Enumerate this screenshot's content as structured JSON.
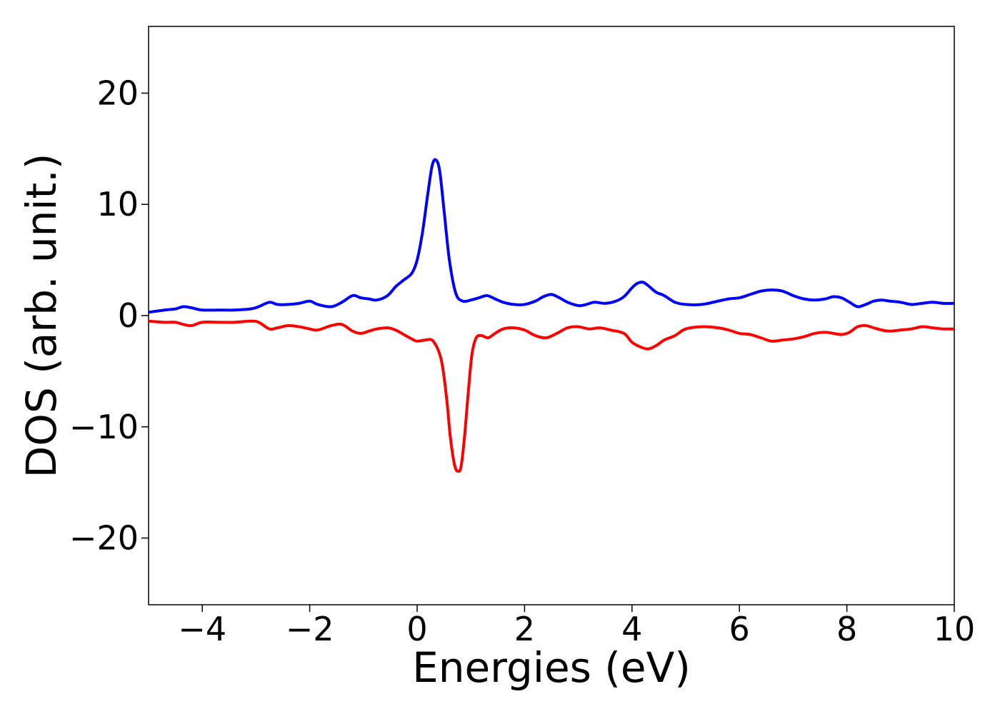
{
  "chart_data": {
    "type": "line",
    "xlabel": "Energies (eV)",
    "ylabel": "DOS (arb. unit.)",
    "xlim": [
      -5,
      10
    ],
    "ylim": [
      -26,
      26
    ],
    "xticks": [
      -4,
      -2,
      0,
      2,
      4,
      6,
      8,
      10
    ],
    "xtick_labels": [
      "−4",
      "−2",
      "0",
      "2",
      "4",
      "6",
      "8",
      "10"
    ],
    "yticks": [
      -20,
      -10,
      0,
      10,
      20
    ],
    "ytick_labels": [
      "−20",
      "−10",
      "0",
      "10",
      "20"
    ],
    "grid": false,
    "legend": "none",
    "series": [
      {
        "color": "#0000ff",
        "x": [
          -5.0,
          -4.7,
          -4.5,
          -4.35,
          -4.2,
          -4.0,
          -3.7,
          -3.4,
          -3.1,
          -2.95,
          -2.75,
          -2.6,
          -2.4,
          -2.2,
          -2.0,
          -1.85,
          -1.6,
          -1.4,
          -1.2,
          -1.05,
          -0.9,
          -0.75,
          -0.55,
          -0.4,
          -0.25,
          -0.1,
          0.0,
          0.1,
          0.2,
          0.28,
          0.35,
          0.42,
          0.5,
          0.6,
          0.72,
          0.85,
          1.0,
          1.15,
          1.3,
          1.45,
          1.6,
          1.8,
          2.0,
          2.2,
          2.35,
          2.5,
          2.65,
          2.8,
          3.0,
          3.15,
          3.3,
          3.5,
          3.7,
          3.85,
          4.0,
          4.1,
          4.2,
          4.3,
          4.45,
          4.6,
          4.8,
          5.0,
          5.3,
          5.6,
          5.8,
          6.0,
          6.2,
          6.4,
          6.6,
          6.8,
          7.0,
          7.2,
          7.4,
          7.6,
          7.75,
          7.9,
          8.05,
          8.2,
          8.35,
          8.5,
          8.65,
          8.8,
          9.0,
          9.2,
          9.4,
          9.6,
          9.8,
          10.0
        ],
        "y": [
          0.3,
          0.5,
          0.6,
          0.8,
          0.7,
          0.5,
          0.5,
          0.5,
          0.6,
          0.8,
          1.2,
          1.0,
          1.0,
          1.1,
          1.3,
          1.0,
          0.8,
          1.2,
          1.8,
          1.6,
          1.5,
          1.4,
          1.8,
          2.6,
          3.2,
          3.8,
          5.0,
          7.5,
          11.0,
          13.5,
          14.0,
          13.0,
          9.5,
          5.0,
          2.0,
          1.3,
          1.4,
          1.6,
          1.8,
          1.5,
          1.2,
          1.0,
          1.0,
          1.3,
          1.7,
          1.9,
          1.6,
          1.2,
          0.9,
          1.0,
          1.2,
          1.1,
          1.3,
          1.7,
          2.5,
          2.9,
          3.0,
          2.7,
          2.1,
          1.8,
          1.2,
          1.0,
          1.0,
          1.3,
          1.5,
          1.6,
          1.9,
          2.2,
          2.3,
          2.2,
          1.8,
          1.5,
          1.4,
          1.5,
          1.7,
          1.6,
          1.2,
          0.8,
          1.0,
          1.3,
          1.4,
          1.3,
          1.2,
          1.0,
          1.1,
          1.2,
          1.1,
          1.1
        ]
      },
      {
        "color": "#ff0000",
        "x": [
          -5.0,
          -4.7,
          -4.5,
          -4.35,
          -4.2,
          -4.0,
          -3.7,
          -3.4,
          -3.1,
          -2.95,
          -2.75,
          -2.6,
          -2.4,
          -2.2,
          -2.0,
          -1.85,
          -1.6,
          -1.4,
          -1.2,
          -1.05,
          -0.9,
          -0.75,
          -0.55,
          -0.4,
          -0.25,
          -0.1,
          0.0,
          0.15,
          0.3,
          0.45,
          0.55,
          0.62,
          0.7,
          0.77,
          0.82,
          0.88,
          0.95,
          1.02,
          1.1,
          1.2,
          1.32,
          1.45,
          1.6,
          1.8,
          2.0,
          2.2,
          2.4,
          2.6,
          2.8,
          3.0,
          3.2,
          3.4,
          3.6,
          3.85,
          4.0,
          4.15,
          4.3,
          4.45,
          4.6,
          4.8,
          5.0,
          5.3,
          5.6,
          5.8,
          6.0,
          6.2,
          6.4,
          6.6,
          6.8,
          7.0,
          7.2,
          7.4,
          7.6,
          7.75,
          7.9,
          8.05,
          8.2,
          8.35,
          8.5,
          8.65,
          8.8,
          9.0,
          9.2,
          9.4,
          9.6,
          9.8,
          10.0
        ],
        "y": [
          -0.5,
          -0.6,
          -0.6,
          -0.8,
          -0.9,
          -0.6,
          -0.6,
          -0.6,
          -0.5,
          -0.6,
          -1.2,
          -1.1,
          -0.9,
          -1.0,
          -1.2,
          -1.3,
          -0.9,
          -0.8,
          -1.4,
          -1.6,
          -1.4,
          -1.2,
          -1.1,
          -1.3,
          -1.7,
          -2.1,
          -2.3,
          -2.2,
          -2.3,
          -4.0,
          -7.5,
          -11.0,
          -13.5,
          -14.0,
          -13.5,
          -11.0,
          -7.0,
          -3.5,
          -2.0,
          -1.8,
          -2.0,
          -1.6,
          -1.2,
          -1.1,
          -1.3,
          -1.8,
          -2.0,
          -1.6,
          -1.1,
          -1.0,
          -1.2,
          -1.1,
          -1.3,
          -1.6,
          -2.4,
          -2.8,
          -3.0,
          -2.7,
          -2.2,
          -1.8,
          -1.2,
          -1.0,
          -1.1,
          -1.3,
          -1.6,
          -1.7,
          -2.0,
          -2.3,
          -2.2,
          -2.1,
          -1.9,
          -1.6,
          -1.5,
          -1.6,
          -1.7,
          -1.5,
          -1.0,
          -0.9,
          -1.1,
          -1.3,
          -1.4,
          -1.3,
          -1.2,
          -1.0,
          -1.1,
          -1.2,
          -1.2
        ]
      }
    ]
  }
}
